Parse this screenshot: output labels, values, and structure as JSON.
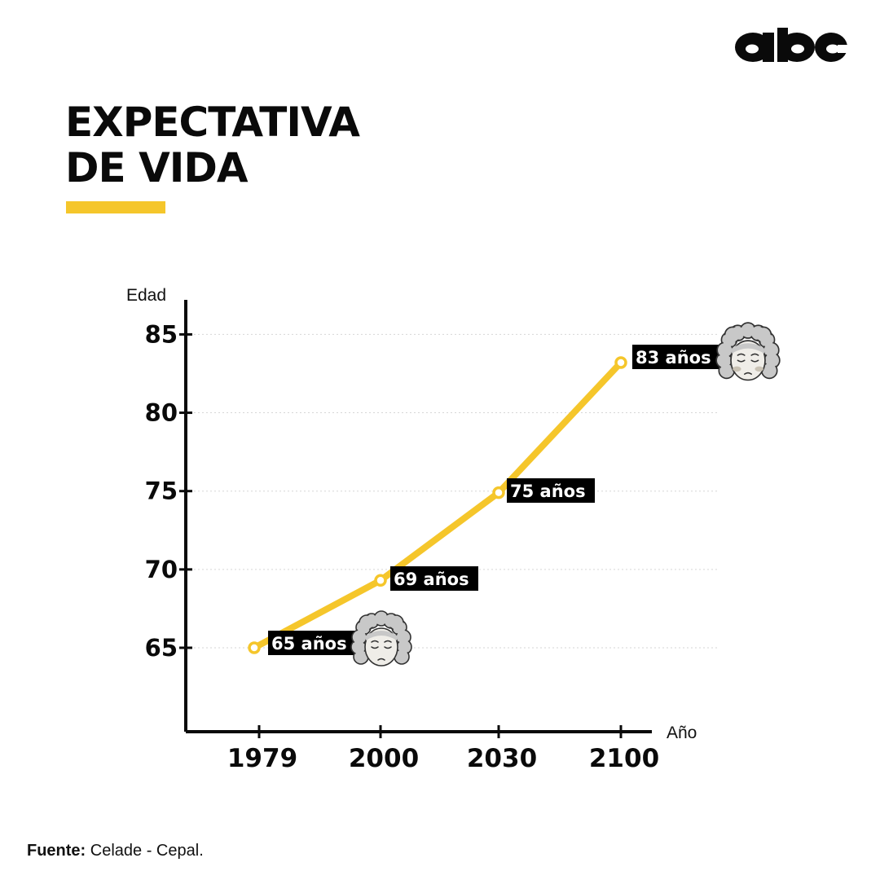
{
  "brand": {
    "logo_text": "abc"
  },
  "title": {
    "line1": "EXPECTATIVA",
    "line2": "DE VIDA"
  },
  "colors": {
    "accent": "#F5C62B",
    "text": "#0A0A0A",
    "label_bg": "#000000",
    "grid": "#D6D6D6",
    "face": "#EFEDE8",
    "hair": "#C8C8C8"
  },
  "icons": [
    "elderly-face-icon",
    "elderly-face-icon"
  ],
  "chart_data": {
    "type": "line",
    "ylabel": "Edad",
    "xlabel": "Año",
    "ylim": [
      60,
      87
    ],
    "yticks": [
      65,
      70,
      75,
      80,
      85
    ],
    "grid": true,
    "categories": [
      "1979",
      "2000",
      "2030",
      "2100"
    ],
    "values": [
      65,
      69.3,
      74.9,
      83.2
    ],
    "data_labels": [
      "65 años",
      "69 años",
      "75 años",
      "83 años"
    ]
  },
  "source": {
    "label": "Fuente:",
    "text": "Celade - Cepal."
  }
}
